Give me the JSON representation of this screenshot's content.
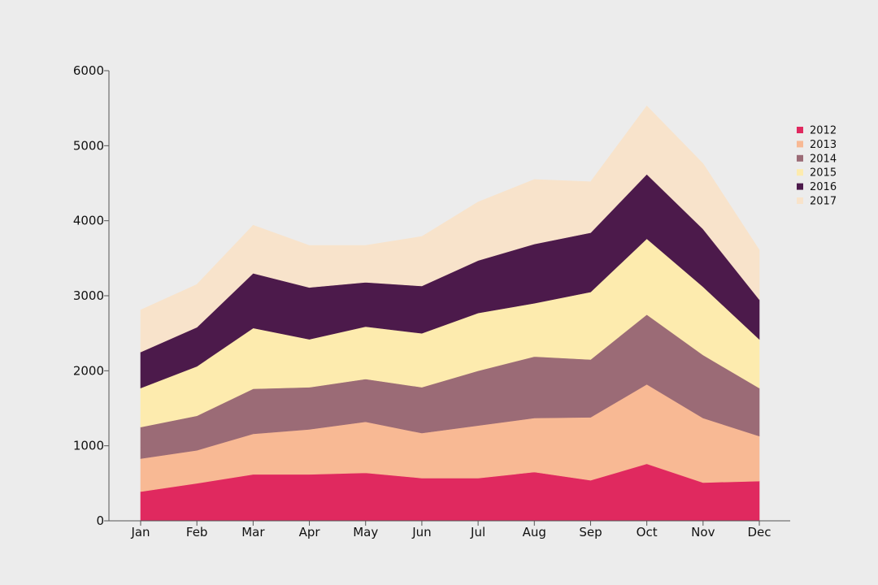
{
  "chart_data": {
    "type": "area",
    "stacked": true,
    "title": "",
    "xlabel": "",
    "ylabel": "",
    "categories": [
      "Jan",
      "Feb",
      "Mar",
      "Apr",
      "May",
      "Jun",
      "Jul",
      "Aug",
      "Sep",
      "Oct",
      "Nov",
      "Dec"
    ],
    "ylim": [
      0,
      6000
    ],
    "yticks": [
      0,
      1000,
      2000,
      3000,
      4000,
      5000,
      6000
    ],
    "grid": false,
    "legend_position": "right",
    "series": [
      {
        "name": "2012",
        "color": "#e0295f",
        "values": [
          390,
          500,
          620,
          620,
          640,
          570,
          570,
          650,
          540,
          760,
          510,
          530
        ]
      },
      {
        "name": "2013",
        "color": "#f8b994",
        "values": [
          440,
          440,
          540,
          600,
          680,
          600,
          700,
          720,
          840,
          1060,
          860,
          600
        ]
      },
      {
        "name": "2014",
        "color": "#9b6b76",
        "values": [
          420,
          460,
          600,
          560,
          570,
          610,
          730,
          820,
          770,
          930,
          840,
          640
        ]
      },
      {
        "name": "2015",
        "color": "#fdebae",
        "values": [
          520,
          660,
          810,
          640,
          700,
          720,
          770,
          710,
          900,
          1010,
          910,
          650
        ]
      },
      {
        "name": "2016",
        "color": "#4c1a4b",
        "values": [
          480,
          520,
          730,
          690,
          590,
          630,
          700,
          790,
          790,
          860,
          770,
          530
        ]
      },
      {
        "name": "2017",
        "color": "#f8e3cb",
        "values": [
          560,
          570,
          640,
          560,
          490,
          660,
          780,
          860,
          680,
          910,
          870,
          660
        ]
      }
    ]
  }
}
